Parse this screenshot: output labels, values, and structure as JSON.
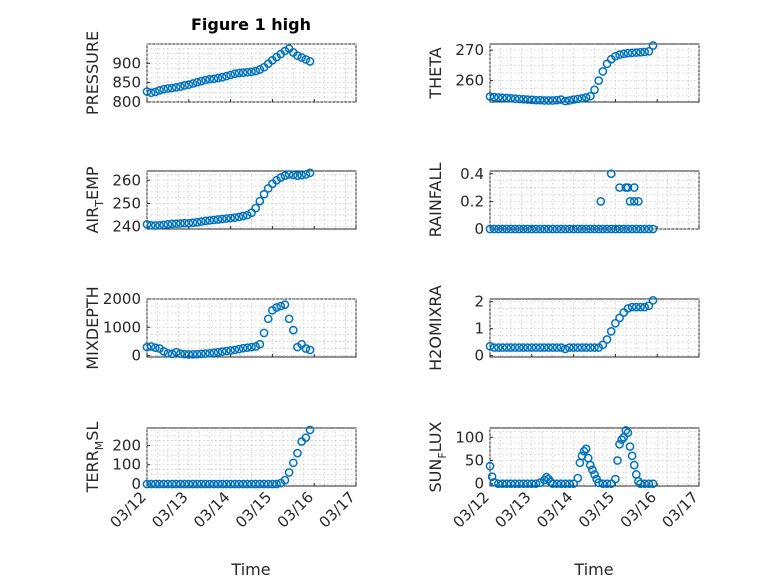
{
  "title": "Figure 1 high",
  "marker_color": "#0072BD",
  "xlabel": "Time",
  "xticks": [
    "03/12",
    "03/13",
    "03/14",
    "03/15",
    "03/16",
    "03/17"
  ],
  "chart_data": [
    {
      "type": "scatter",
      "ylabel": "PRESSURE",
      "ylim": [
        800,
        950
      ],
      "yticks": [
        800,
        850,
        900
      ],
      "grid": true,
      "x": [
        0,
        0.1,
        0.2,
        0.3,
        0.4,
        0.5,
        0.6,
        0.7,
        0.8,
        0.9,
        1.0,
        1.1,
        1.2,
        1.3,
        1.4,
        1.5,
        1.6,
        1.7,
        1.8,
        1.9,
        2.0,
        2.1,
        2.2,
        2.3,
        2.4,
        2.5,
        2.6,
        2.7,
        2.8,
        2.9,
        3.0,
        3.1,
        3.2,
        3.3,
        3.4,
        3.5,
        3.6,
        3.7,
        3.8,
        3.9
      ],
      "y": [
        827,
        824,
        826,
        830,
        833,
        835,
        836,
        838,
        840,
        843,
        845,
        848,
        851,
        854,
        857,
        859,
        860,
        862,
        864,
        867,
        870,
        873,
        875,
        876,
        877,
        878,
        880,
        884,
        890,
        899,
        908,
        916,
        924,
        932,
        938,
        928,
        920,
        915,
        910,
        905
      ]
    },
    {
      "type": "scatter",
      "ylabel": "THETA",
      "ylim": [
        253,
        272
      ],
      "yticks": [
        260,
        270
      ],
      "grid": true,
      "x": [
        0,
        0.1,
        0.2,
        0.3,
        0.4,
        0.5,
        0.6,
        0.7,
        0.8,
        0.9,
        1.0,
        1.1,
        1.2,
        1.3,
        1.4,
        1.5,
        1.6,
        1.7,
        1.8,
        1.9,
        2.0,
        2.1,
        2.2,
        2.3,
        2.4,
        2.5,
        2.6,
        2.7,
        2.8,
        2.9,
        3.0,
        3.1,
        3.2,
        3.3,
        3.4,
        3.5,
        3.6,
        3.7,
        3.8,
        3.9
      ],
      "y": [
        254.8,
        254.6,
        254.5,
        254.4,
        254.3,
        254.2,
        254.1,
        254.0,
        253.9,
        253.8,
        253.7,
        253.6,
        253.6,
        253.5,
        253.5,
        253.5,
        253.6,
        253.8,
        253.3,
        253.5,
        253.8,
        254.0,
        254.2,
        254.5,
        254.9,
        257,
        260,
        263,
        265.5,
        267,
        268,
        268.5,
        268.8,
        269,
        269.1,
        269.2,
        269.3,
        269.4,
        269.6,
        271.5
      ]
    },
    {
      "type": "scatter",
      "ylabel": "AIR",
      "ylabel_sub": "T",
      "ylabel_rest": "EMP",
      "ylim": [
        239,
        264
      ],
      "yticks": [
        240,
        250,
        260
      ],
      "grid": true,
      "x": [
        0,
        0.1,
        0.2,
        0.3,
        0.4,
        0.5,
        0.6,
        0.7,
        0.8,
        0.9,
        1.0,
        1.1,
        1.2,
        1.3,
        1.4,
        1.5,
        1.6,
        1.7,
        1.8,
        1.9,
        2.0,
        2.1,
        2.2,
        2.3,
        2.4,
        2.5,
        2.6,
        2.7,
        2.8,
        2.9,
        3.0,
        3.1,
        3.2,
        3.3,
        3.4,
        3.5,
        3.6,
        3.7,
        3.8,
        3.9
      ],
      "y": [
        241,
        240.6,
        240.5,
        240.6,
        240.8,
        241,
        241.2,
        241.3,
        241.4,
        241.5,
        241.5,
        241.7,
        241.9,
        242.2,
        242.5,
        242.7,
        242.9,
        243.1,
        243.3,
        243.5,
        243.7,
        243.9,
        244.2,
        244.6,
        245,
        246,
        248,
        251,
        254,
        256.5,
        258.5,
        260,
        261.2,
        262,
        262.5,
        262.3,
        262.0,
        262.2,
        262.5,
        263.2
      ]
    },
    {
      "type": "scatter",
      "ylabel": "RAINFALL",
      "ylim": [
        0,
        0.42
      ],
      "yticks": [
        0,
        0.2,
        0.4
      ],
      "grid": true,
      "x": [
        0,
        0.1,
        0.2,
        0.3,
        0.4,
        0.5,
        0.6,
        0.7,
        0.8,
        0.9,
        1.0,
        1.1,
        1.2,
        1.3,
        1.4,
        1.5,
        1.6,
        1.7,
        1.8,
        1.9,
        2.0,
        2.1,
        2.2,
        2.3,
        2.4,
        2.5,
        2.6,
        2.7,
        2.8,
        2.9,
        3.0,
        3.1,
        3.2,
        3.3,
        3.4,
        3.5,
        3.6,
        3.7,
        3.8,
        3.9,
        2.65,
        2.9,
        3.1,
        3.25,
        3.3,
        3.35,
        3.45,
        3.45,
        3.55
      ],
      "y": [
        0,
        0,
        0,
        0,
        0,
        0,
        0,
        0,
        0,
        0,
        0,
        0,
        0,
        0,
        0,
        0,
        0,
        0,
        0,
        0,
        0,
        0,
        0,
        0,
        0,
        0,
        0,
        0,
        0,
        0,
        0,
        0,
        0,
        0,
        0,
        0,
        0,
        0,
        0,
        0,
        0.2,
        0.4,
        0.3,
        0.3,
        0.3,
        0.2,
        0.2,
        0.3,
        0.2
      ]
    },
    {
      "type": "scatter",
      "ylabel": "MIXDEPTH",
      "ylim": [
        -50,
        2000
      ],
      "yticks": [
        0,
        1000,
        2000
      ],
      "grid": true,
      "x": [
        0,
        0.1,
        0.2,
        0.3,
        0.4,
        0.5,
        0.6,
        0.7,
        0.8,
        0.9,
        1.0,
        1.1,
        1.2,
        1.3,
        1.4,
        1.5,
        1.6,
        1.7,
        1.8,
        1.9,
        2.0,
        2.1,
        2.2,
        2.3,
        2.4,
        2.5,
        2.6,
        2.7,
        2.8,
        2.9,
        3.0,
        3.1,
        3.2,
        3.3,
        3.4,
        3.5,
        3.6,
        3.7,
        3.8,
        3.9
      ],
      "y": [
        300,
        320,
        280,
        250,
        150,
        80,
        60,
        120,
        70,
        50,
        40,
        45,
        50,
        60,
        70,
        80,
        100,
        120,
        140,
        160,
        180,
        200,
        230,
        260,
        280,
        300,
        320,
        400,
        800,
        1300,
        1600,
        1700,
        1750,
        1800,
        1300,
        900,
        300,
        400,
        250,
        200
      ]
    },
    {
      "type": "scatter",
      "ylabel": "H2OMIXRA",
      "ylim": [
        -0.05,
        2.1
      ],
      "yticks": [
        0,
        1,
        2
      ],
      "grid": true,
      "x": [
        0,
        0.1,
        0.2,
        0.3,
        0.4,
        0.5,
        0.6,
        0.7,
        0.8,
        0.9,
        1.0,
        1.1,
        1.2,
        1.3,
        1.4,
        1.5,
        1.6,
        1.7,
        1.8,
        1.9,
        2.0,
        2.1,
        2.2,
        2.3,
        2.4,
        2.5,
        2.6,
        2.7,
        2.8,
        2.9,
        3.0,
        3.1,
        3.2,
        3.3,
        3.4,
        3.5,
        3.6,
        3.7,
        3.8,
        3.9
      ],
      "y": [
        0.35,
        0.3,
        0.3,
        0.3,
        0.3,
        0.3,
        0.3,
        0.3,
        0.3,
        0.3,
        0.3,
        0.3,
        0.3,
        0.3,
        0.3,
        0.3,
        0.3,
        0.3,
        0.25,
        0.3,
        0.3,
        0.3,
        0.3,
        0.3,
        0.3,
        0.3,
        0.3,
        0.4,
        0.6,
        0.9,
        1.2,
        1.4,
        1.6,
        1.75,
        1.8,
        1.8,
        1.8,
        1.8,
        1.85,
        2.05
      ]
    },
    {
      "type": "scatter",
      "ylabel": "TERR",
      "ylabel_sub": "M",
      "ylabel_rest": "SL",
      "ylim": [
        -10,
        290
      ],
      "yticks": [
        0,
        100,
        200
      ],
      "grid": true,
      "x": [
        0,
        0.1,
        0.2,
        0.3,
        0.4,
        0.5,
        0.6,
        0.7,
        0.8,
        0.9,
        1.0,
        1.1,
        1.2,
        1.3,
        1.4,
        1.5,
        1.6,
        1.7,
        1.8,
        1.9,
        2.0,
        2.1,
        2.2,
        2.3,
        2.4,
        2.5,
        2.6,
        2.7,
        2.8,
        2.9,
        3.0,
        3.1,
        3.2,
        3.3,
        3.4,
        3.5,
        3.6,
        3.7,
        3.8,
        3.9
      ],
      "y": [
        0,
        0,
        0,
        0,
        0,
        0,
        0,
        0,
        0,
        0,
        0,
        0,
        0,
        0,
        0,
        0,
        0,
        0,
        0,
        0,
        0,
        0,
        0,
        0,
        0,
        0,
        0,
        0,
        0,
        0,
        0,
        0,
        5,
        20,
        60,
        110,
        160,
        220,
        240,
        280
      ]
    },
    {
      "type": "scatter",
      "ylabel": "SUN",
      "ylabel_sub": "F",
      "ylabel_rest": "LUX",
      "ylim": [
        -5,
        120
      ],
      "yticks": [
        0,
        50,
        100
      ],
      "grid": true,
      "x": [
        0.0,
        0.05,
        0.1,
        0.2,
        0.3,
        0.4,
        0.5,
        0.6,
        0.7,
        0.8,
        0.9,
        1.0,
        1.1,
        1.2,
        1.3,
        1.35,
        1.4,
        1.45,
        1.5,
        1.6,
        1.7,
        1.8,
        1.9,
        2.0,
        2.1,
        2.15,
        2.2,
        2.25,
        2.3,
        2.35,
        2.4,
        2.45,
        2.5,
        2.55,
        2.6,
        2.7,
        2.8,
        2.9,
        3.0,
        3.05,
        3.1,
        3.15,
        3.2,
        3.25,
        3.3,
        3.35,
        3.4,
        3.45,
        3.5,
        3.55,
        3.6,
        3.7,
        3.8,
        3.9
      ],
      "y": [
        38,
        15,
        3,
        0,
        0,
        0,
        0,
        0,
        0,
        0,
        0,
        0,
        0,
        2,
        8,
        14,
        10,
        4,
        0,
        0,
        0,
        0,
        0,
        0,
        12,
        45,
        60,
        70,
        75,
        55,
        40,
        30,
        20,
        10,
        2,
        0,
        0,
        0,
        10,
        50,
        85,
        95,
        100,
        115,
        110,
        80,
        60,
        40,
        20,
        5,
        0,
        0,
        0,
        0
      ]
    }
  ]
}
